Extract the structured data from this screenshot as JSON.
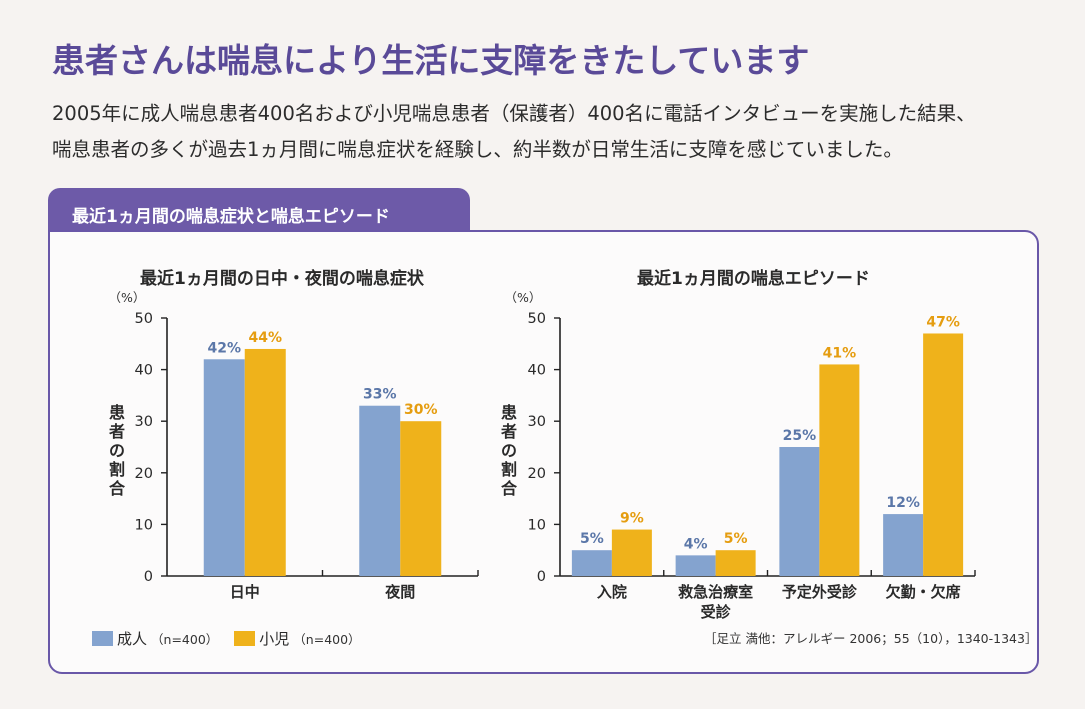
{
  "headline": "患者さんは喘息により生活に支障をきたしています",
  "intro": {
    "line1": "2005年に成人喘息患者400名および小児喘息患者（保護者）400名に電話インタビューを実施した結果、",
    "line2": "喘息患者の多くが過去1ヵ月間に喘息症状を経験し、約半数が日常生活に支障を感じていました。"
  },
  "section_tab": "最近1ヵ月間の喘息症状と喘息エピソード",
  "legend": [
    {
      "label": "成人",
      "n": "（n=400）",
      "color": "#84a3cf"
    },
    {
      "label": "小児",
      "n": "（n=400）",
      "color": "#efb21b"
    }
  ],
  "citation": "［足立 満他：アレルギー 2006；55（10），1340-1343］",
  "colors": {
    "brand_purple": "#5a4a98",
    "adult": "#84a3cf",
    "adult_label": "#5b77a8",
    "child": "#efb21b",
    "child_label": "#e59d10"
  },
  "chart_data": [
    {
      "type": "bar",
      "title": "最近1ヵ月間の日中・夜間の喘息症状",
      "xlabel": "",
      "ylabel": "患者の割合",
      "yunit": "（%）",
      "ylim": [
        0,
        50
      ],
      "yticks": [
        0,
        10,
        20,
        30,
        40,
        50
      ],
      "grid": false,
      "legend": "bottom-left",
      "categories": [
        "日中",
        "夜間"
      ],
      "series": [
        {
          "name": "成人",
          "values": [
            42,
            33
          ],
          "labels": [
            "42%",
            "33%"
          ]
        },
        {
          "name": "小児",
          "values": [
            44,
            30
          ],
          "labels": [
            "44%",
            "30%"
          ]
        }
      ]
    },
    {
      "type": "bar",
      "title": "最近1ヵ月間の喘息エピソード",
      "xlabel": "",
      "ylabel": "患者の割合",
      "yunit": "（%）",
      "ylim": [
        0,
        50
      ],
      "yticks": [
        0,
        10,
        20,
        30,
        40,
        50
      ],
      "grid": false,
      "legend": "bottom-left",
      "categories": [
        "入院",
        "救急治療室\n受診",
        "予定外受診",
        "欠勤・欠席"
      ],
      "series": [
        {
          "name": "成人",
          "values": [
            5,
            4,
            25,
            12
          ],
          "labels": [
            "5%",
            "4%",
            "25%",
            "12%"
          ]
        },
        {
          "name": "小児",
          "values": [
            9,
            5,
            41,
            47
          ],
          "labels": [
            "9%",
            "5%",
            "41%",
            "47%"
          ]
        }
      ]
    }
  ]
}
